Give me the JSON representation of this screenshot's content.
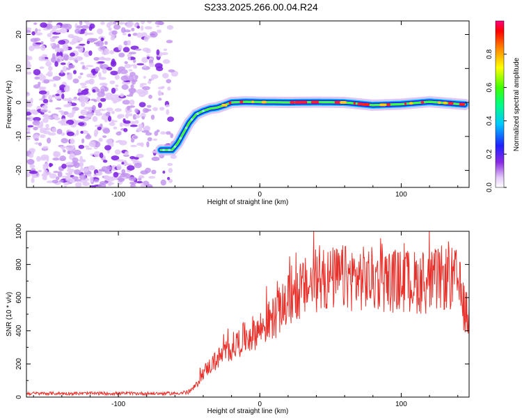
{
  "chart_data": [
    {
      "type": "heatmap",
      "title": "S233.2025.266.00.04.R24",
      "xlabel": "Height of straight line (km)",
      "ylabel": "Frequency (Hz)",
      "xlim": [
        -165,
        148
      ],
      "ylim": [
        -25,
        24
      ],
      "xticks": [
        -100,
        0,
        100
      ],
      "yticks": [
        -20,
        -10,
        0,
        10,
        20
      ],
      "colorbar": {
        "label": "Normalized spectral amplitude",
        "range": [
          0,
          1
        ],
        "ticks": [
          0.0,
          0.2,
          0.4,
          0.6,
          0.8
        ]
      },
      "ridge": {
        "x": [
          -70,
          -62,
          -58,
          -54,
          -50,
          -45,
          -40,
          -35,
          -30,
          -25,
          -20,
          -10,
          0,
          20,
          40,
          60,
          80,
          100,
          120,
          145
        ],
        "y": [
          -14,
          -14,
          -12,
          -9,
          -6,
          -3.5,
          -2.5,
          -1.8,
          -1.5,
          -0.8,
          0,
          0.2,
          0.1,
          0,
          0.1,
          0,
          -0.8,
          -0.5,
          0.2,
          -0.6
        ]
      },
      "noise_region_x": [
        -165,
        -60
      ]
    },
    {
      "type": "line",
      "xlabel": "Height of straight line (km)",
      "ylabel": "SNR (10 * v/v)",
      "xlim": [
        -165,
        148
      ],
      "ylim": [
        0,
        1000
      ],
      "xticks": [
        -100,
        0,
        100
      ],
      "yticks": [
        0,
        200,
        400,
        600,
        800,
        1000
      ],
      "color": "#e8302a",
      "trend": {
        "x": [
          -165,
          -60,
          -50,
          -45,
          -40,
          -30,
          -20,
          -10,
          0,
          10,
          20,
          30,
          40,
          60,
          80,
          100,
          120,
          130,
          140,
          145,
          148
        ],
        "y": [
          22,
          22,
          30,
          70,
          150,
          230,
          300,
          360,
          410,
          480,
          580,
          650,
          700,
          720,
          710,
          700,
          690,
          720,
          700,
          520,
          470
        ]
      }
    }
  ]
}
